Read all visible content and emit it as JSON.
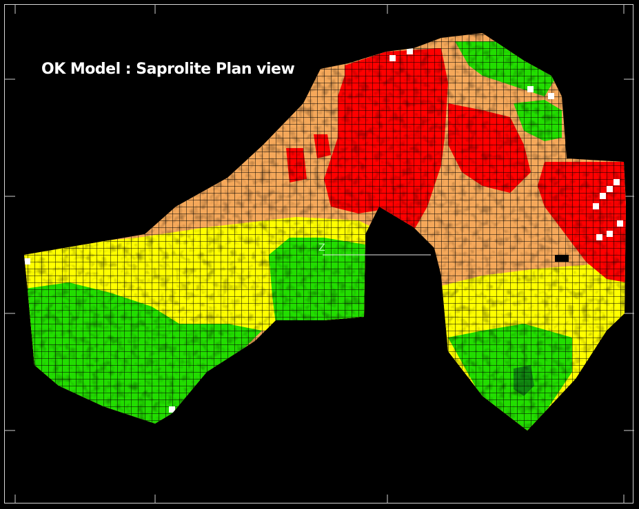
{
  "title": "OK Model : Saprolite Plan view",
  "axis_label": "Z",
  "legend_colors": {
    "very_high": "#ff0000",
    "high": "#f5a85a",
    "medium": "#ffff00",
    "low": "#22dd00",
    "very_low": "#118811",
    "missing": "#ffffff"
  }
}
